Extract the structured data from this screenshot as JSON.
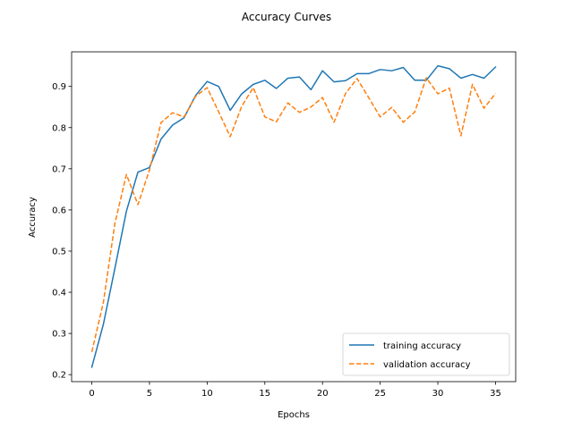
{
  "chart_data": {
    "type": "line",
    "title": "Accuracy Curves",
    "xlabel": "Epochs",
    "ylabel": "Accuracy",
    "xlim": [
      -1.75,
      36.75
    ],
    "ylim": [
      0.183,
      0.984
    ],
    "xticks": [
      0,
      5,
      10,
      15,
      20,
      25,
      30,
      35
    ],
    "yticks": [
      0.2,
      0.3,
      0.4,
      0.5,
      0.6,
      0.7,
      0.8,
      0.9
    ],
    "xtick_labels": [
      "0",
      "5",
      "10",
      "15",
      "20",
      "25",
      "30",
      "35"
    ],
    "ytick_labels": [
      "0.2",
      "0.3",
      "0.4",
      "0.5",
      "0.6",
      "0.7",
      "0.8",
      "0.9"
    ],
    "grid": false,
    "legend_position": "lower-right",
    "x": [
      0,
      1,
      2,
      3,
      4,
      5,
      6,
      7,
      8,
      9,
      10,
      11,
      12,
      13,
      14,
      15,
      16,
      17,
      18,
      19,
      20,
      21,
      22,
      23,
      24,
      25,
      26,
      27,
      28,
      29,
      30,
      31,
      32,
      33,
      34,
      35
    ],
    "series": [
      {
        "name": "training accuracy",
        "color": "#1f77b4",
        "style": "solid",
        "values": [
          0.218,
          0.322,
          0.458,
          0.597,
          0.692,
          0.703,
          0.772,
          0.806,
          0.824,
          0.878,
          0.912,
          0.9,
          0.842,
          0.882,
          0.905,
          0.915,
          0.895,
          0.92,
          0.923,
          0.892,
          0.938,
          0.911,
          0.914,
          0.931,
          0.931,
          0.941,
          0.938,
          0.946,
          0.915,
          0.915,
          0.95,
          0.943,
          0.92,
          0.929,
          0.92,
          0.947
        ]
      },
      {
        "name": "validation accuracy",
        "color": "#ff7f0e",
        "style": "dashed",
        "values": [
          0.255,
          0.375,
          0.567,
          0.686,
          0.613,
          0.697,
          0.812,
          0.836,
          0.826,
          0.876,
          0.897,
          0.838,
          0.778,
          0.852,
          0.897,
          0.826,
          0.814,
          0.86,
          0.837,
          0.85,
          0.873,
          0.813,
          0.883,
          0.919,
          0.873,
          0.826,
          0.849,
          0.813,
          0.838,
          0.921,
          0.882,
          0.896,
          0.78,
          0.905,
          0.847,
          0.883
        ]
      }
    ]
  }
}
